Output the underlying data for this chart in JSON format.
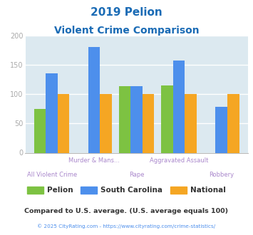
{
  "title_line1": "2019 Pelion",
  "title_line2": "Violent Crime Comparison",
  "title_color": "#1a6bb5",
  "categories": [
    "All Violent Crime",
    "Murder & Mans...",
    "Rape",
    "Aggravated Assault",
    "Robbery"
  ],
  "series": {
    "Pelion": [
      75,
      0,
      113,
      115,
      0
    ],
    "South Carolina": [
      135,
      180,
      113,
      157,
      78
    ],
    "National": [
      100,
      100,
      100,
      100,
      100
    ]
  },
  "colors": {
    "Pelion": "#7dc242",
    "South Carolina": "#4d8fec",
    "National": "#f5a623"
  },
  "ylim": [
    0,
    200
  ],
  "yticks": [
    0,
    50,
    100,
    150,
    200
  ],
  "bg_color": "#dce9f0",
  "grid_color": "#ffffff",
  "footnote1": "Compared to U.S. average. (U.S. average equals 100)",
  "footnote2": "© 2025 CityRating.com - https://www.cityrating.com/crime-statistics/",
  "footnote1_color": "#333333",
  "footnote2_color": "#4d8fec",
  "cat_label_color": "#aa88cc",
  "tick_color": "#aaaaaa",
  "legend_text_color": "#333333"
}
